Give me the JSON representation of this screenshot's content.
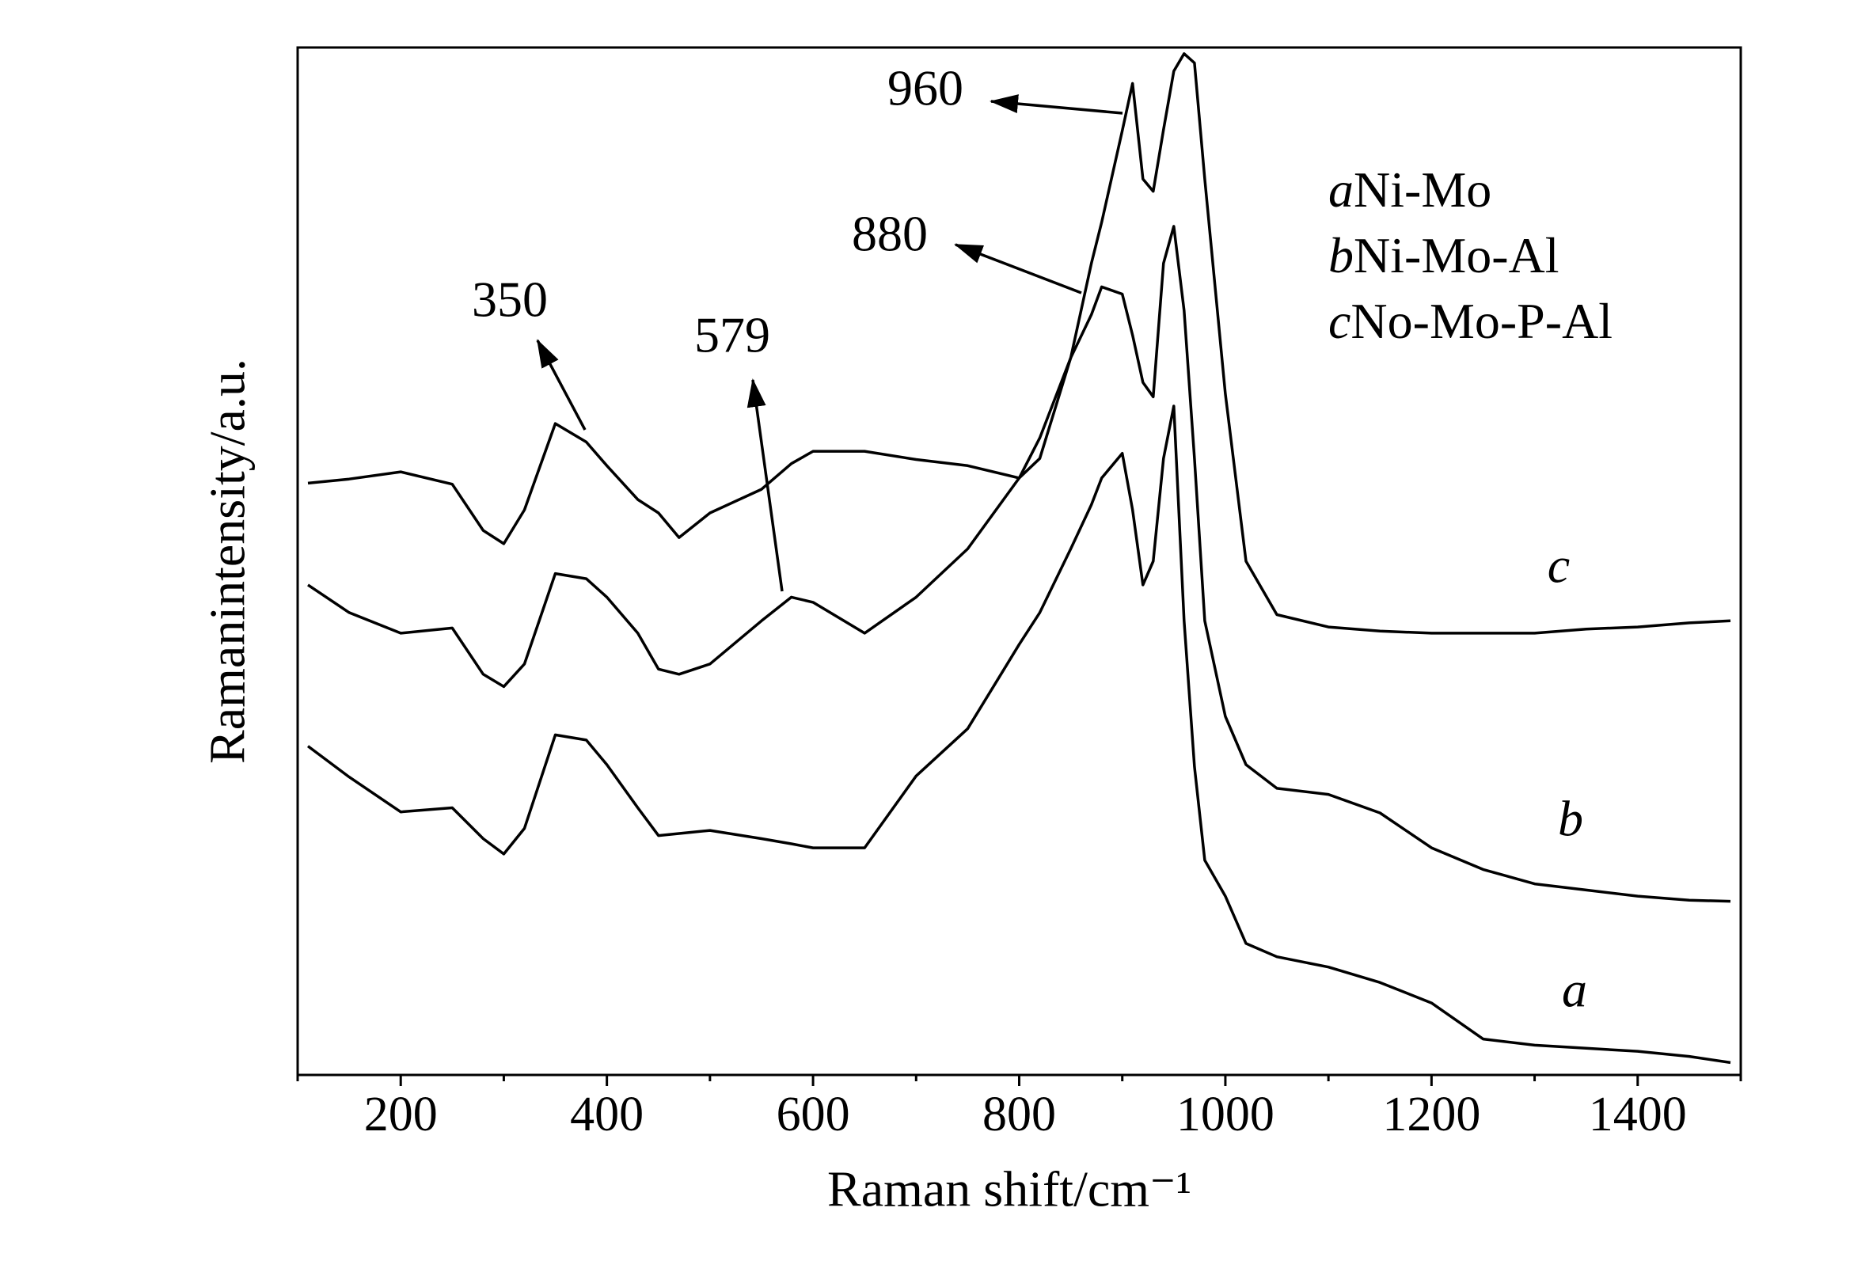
{
  "chart_data": {
    "type": "line",
    "xlabel": "Raman shift/cm⁻¹",
    "ylabel": "Ramanintensity/a.u.",
    "x": [
      110,
      150,
      200,
      250,
      280,
      300,
      320,
      350,
      380,
      400,
      430,
      450,
      470,
      500,
      550,
      579,
      600,
      650,
      700,
      750,
      800,
      820,
      850,
      870,
      880,
      900,
      910,
      920,
      930,
      940,
      950,
      960,
      970,
      980,
      1000,
      1020,
      1050,
      1100,
      1150,
      1200,
      1250,
      1300,
      1350,
      1400,
      1450,
      1490
    ],
    "series": [
      {
        "name": "Ni-Mo",
        "label": "a",
        "color": "#000000",
        "values": [
          32,
          29,
          25.6,
          26,
          23,
          21.5,
          24,
          33.1,
          32.6,
          30.2,
          26,
          23.3,
          23.5,
          23.8,
          23,
          22.5,
          22.1,
          22.1,
          29.1,
          33.7,
          41.9,
          45,
          51.2,
          55.5,
          58.1,
          60.5,
          55,
          47.7,
          50,
          60,
          65.1,
          44.2,
          30,
          20.9,
          17.4,
          12.8,
          11.5,
          10.5,
          9,
          7,
          3.5,
          2.9,
          2.6,
          2.3,
          1.8,
          1.2
        ]
      },
      {
        "name": "Ni-Mo-Al",
        "label": "b",
        "color": "#000000",
        "values": [
          47.7,
          45,
          43,
          43.5,
          39,
          37.8,
          40,
          48.8,
          48.3,
          46.5,
          43,
          39.5,
          39,
          40,
          44.2,
          46.5,
          46,
          43,
          46.5,
          51.2,
          58.1,
          62,
          69.8,
          74,
          76.7,
          76,
          72,
          67.4,
          66,
          79,
          82.6,
          74.4,
          60,
          44.2,
          34.9,
          30.2,
          27.9,
          27.3,
          25.5,
          22.1,
          20,
          18.6,
          18,
          17.4,
          17,
          16.9
        ]
      },
      {
        "name": "No-Mo-P-Al",
        "label": "c",
        "color": "#000000",
        "values": [
          57.6,
          58,
          58.7,
          57.5,
          53,
          51.7,
          55,
          63.4,
          61.6,
          59.3,
          56,
          54.7,
          52.3,
          54.7,
          57,
          59.5,
          60.7,
          60.7,
          59.9,
          59.3,
          58.1,
          60,
          69.8,
          79,
          83,
          91.9,
          96.5,
          87.2,
          86,
          92,
          97.7,
          99.4,
          98.5,
          87.2,
          66.3,
          50,
          44.8,
          43.6,
          43.2,
          43,
          43,
          43,
          43.4,
          43.6,
          44,
          44.2
        ]
      }
    ],
    "xlim": [
      100,
      1500
    ],
    "xticks": [
      200,
      400,
      600,
      800,
      1000,
      1200,
      1400
    ],
    "xminorticks": [
      100,
      300,
      500,
      700,
      900,
      1100,
      1300,
      1500
    ],
    "ylim": [
      0,
      100
    ],
    "annotations": [
      {
        "text": "960"
      },
      {
        "text": "880"
      },
      {
        "text": "350"
      },
      {
        "text": "579"
      }
    ],
    "legend": "upper right"
  }
}
